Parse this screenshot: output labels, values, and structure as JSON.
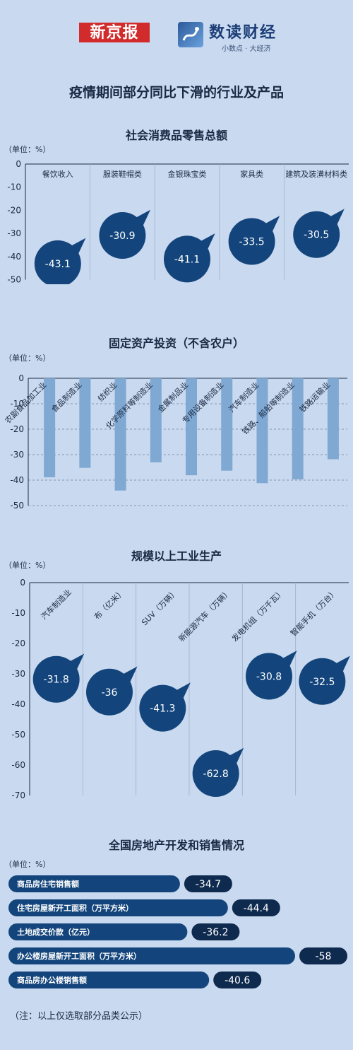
{
  "header": {
    "logo_left": "新京报",
    "logo_right": "数读财经",
    "slogan": "小数点 · 大经济"
  },
  "title": "疫情期间部分同比下滑的行业及产品",
  "colors": {
    "bubble": "#13457c",
    "bar": "#7fa8d2",
    "grid": "#9eb2cc",
    "pill": "#13457c",
    "pill_value": "#0f2a4f"
  },
  "footnote": "（注：以上仅选取部分品类公示）",
  "chart_data": [
    {
      "type": "bar",
      "title": "社会消费品零售总额",
      "unit": "（单位：%）",
      "categories": [
        "餐饮收入",
        "服装鞋帽类",
        "金银珠宝类",
        "家具类",
        "建筑及装潢材料类"
      ],
      "values": [
        -43.1,
        -30.9,
        -41.1,
        -33.5,
        -30.5
      ],
      "yticks": [
        0,
        -10,
        -20,
        -30,
        -40,
        -50
      ],
      "ylim": [
        -50,
        0
      ],
      "grid": "vertical separators"
    },
    {
      "type": "bar",
      "title": "固定资产投资（不含农户）",
      "unit": "（单位：%）",
      "categories": [
        "农副食品加工业",
        "食品制造业",
        "纺织业",
        "化学原料等制造业",
        "金属制品业",
        "专用设备制造业",
        "汽车制造业",
        "铁路、船舶等制造业",
        "铁路运输业"
      ],
      "values": [
        -38.9,
        -35.2,
        -44.1,
        -33.0,
        -38.1,
        -36.3,
        -41.2,
        -39.7,
        -31.8
      ],
      "yticks": [
        0,
        -10,
        -20,
        -30,
        -40,
        -50
      ],
      "ylim": [
        -50,
        0
      ],
      "grid": "horizontal dashed"
    },
    {
      "type": "bar",
      "title": "规模以上工业生产",
      "unit": "（单位：%）",
      "categories": [
        "汽车制造业",
        "布（亿米）",
        "SUV（万辆）",
        "新能源汽车（万辆）",
        "发电机组（万千瓦）",
        "智能手机（万台）"
      ],
      "values": [
        -31.8,
        -36,
        -41.3,
        -62.8,
        -30.8,
        -32.5
      ],
      "yticks": [
        0,
        -10,
        -20,
        -30,
        -40,
        -50,
        -60,
        -70
      ],
      "ylim": [
        -70,
        0
      ],
      "grid": "vertical separators"
    },
    {
      "type": "bar",
      "title": "全国房地产开发和销售情况",
      "unit": "（单位：%）",
      "categories": [
        "商品房住宅销售额",
        "住宅房屋新开工面积（万平方米）",
        "土地成交价款（亿元）",
        "办公楼房屋新开工面积（万平方米）",
        "商品房办公楼销售额"
      ],
      "values": [
        -34.7,
        -44.4,
        -36.2,
        -58,
        -40.6
      ],
      "orientation": "horizontal"
    }
  ]
}
